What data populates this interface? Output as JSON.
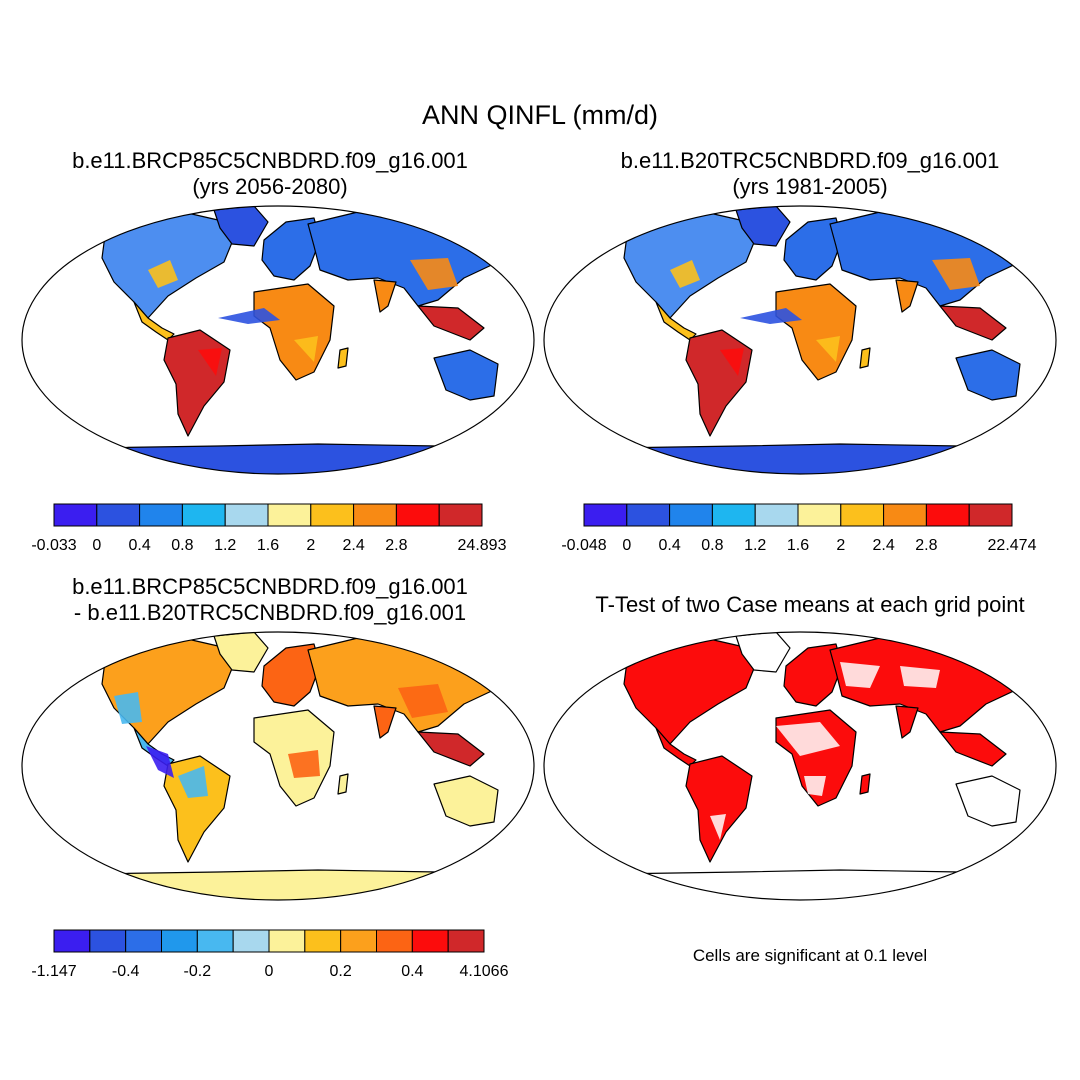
{
  "title": "ANN QINFL (mm/d)",
  "panels": [
    {
      "title_line1": "b.e11.BRCP85C5CNBDRD.f09_g16.001",
      "title_line2": "(yrs 2056-2080)",
      "type": "field",
      "colorbar": {
        "colors": [
          "#3b1ef0",
          "#2c52e0",
          "#2084ec",
          "#1eb6f0",
          "#a8d8ee",
          "#fcf29a",
          "#fcc01c",
          "#f88a14",
          "#fc0c0c",
          "#d0282a"
        ],
        "labels": [
          "-0.033",
          "0",
          "0.4",
          "0.8",
          "1.2",
          "1.6",
          "2",
          "2.4",
          "2.8",
          "24.893"
        ],
        "label_scheme": "minmax"
      }
    },
    {
      "title_line1": "b.e11.B20TRC5CNBDRD.f09_g16.001",
      "title_line2": "(yrs 1981-2005)",
      "type": "field",
      "colorbar": {
        "colors": [
          "#3b1ef0",
          "#2c52e0",
          "#2084ec",
          "#1eb6f0",
          "#a8d8ee",
          "#fcf29a",
          "#fcc01c",
          "#f88a14",
          "#fc0c0c",
          "#d0282a"
        ],
        "labels": [
          "-0.048",
          "0",
          "0.4",
          "0.8",
          "1.2",
          "1.6",
          "2",
          "2.4",
          "2.8",
          "22.474"
        ],
        "label_scheme": "minmax"
      }
    },
    {
      "title_line1": "b.e11.BRCP85C5CNBDRD.f09_g16.001",
      "title_line2": "- b.e11.B20TRC5CNBDRD.f09_g16.001",
      "type": "difference",
      "colorbar": {
        "colors": [
          "#3b1ef0",
          "#2c52e0",
          "#2c6ee8",
          "#2098ec",
          "#48b8f0",
          "#a8d8ee",
          "#fcf29a",
          "#fcc01c",
          "#fca01c",
          "#fc6414",
          "#fc0c0c",
          "#d0282a"
        ],
        "labels": [
          "-1.147",
          "-0.4",
          "-0.2",
          "0",
          "0.2",
          "0.4",
          "4.1066"
        ],
        "label_scheme": "diff"
      }
    },
    {
      "title_line1": "T-Test of two Case means at each grid point",
      "type": "significance",
      "note": "Cells are significant at 0.1 level"
    }
  ]
}
